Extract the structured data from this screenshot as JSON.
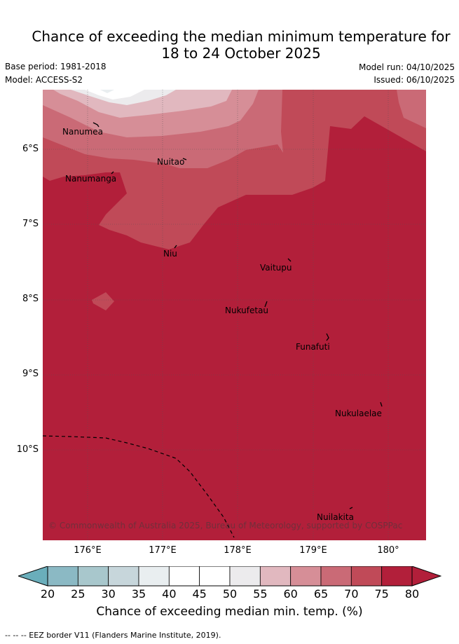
{
  "title_line1": "Chance of exceeding the median minimum temperature for",
  "title_line2": "18 to 24 October 2025",
  "base_period": "Base period: 1981-2018",
  "model": "Model: ACCESS-S2",
  "model_run": "Model run: 04/10/2025",
  "issued": "Issued: 06/10/2025",
  "copyright": "© Commonwealth of Australia 2025, Bureau of Meteorology, supported by COSPPac",
  "lat_labels": [
    "6°S",
    "7°S",
    "8°S",
    "9°S",
    "10°S"
  ],
  "lon_labels": [
    "176°E",
    "177°E",
    "178°E",
    "179°E",
    "180°"
  ],
  "places": [
    "Nanumea",
    "Nuitao",
    "Nanumanga",
    "Niu",
    "Vaitupu",
    "Nukufetau",
    "Funafuti",
    "Nukulaelae",
    "Nuilakita"
  ],
  "colorbar": {
    "ticks": [
      "20",
      "25",
      "30",
      "35",
      "40",
      "45",
      "50",
      "55",
      "60",
      "65",
      "70",
      "75",
      "80"
    ],
    "colors": [
      "#6aaebb",
      "#8bb9c4",
      "#a8c7cc",
      "#c7d6db",
      "#e9eef0",
      "#ffffff",
      "#ffffff",
      "#ecebed",
      "#e1b8bf",
      "#d68e97",
      "#ca6a76",
      "#c04a58",
      "#b21f3a"
    ],
    "title": "Chance of exceeding median min. temp. (%)"
  },
  "legend_footer": "--  --  -- EEZ border V11 (Flanders Marine Institute, 2019)."
}
